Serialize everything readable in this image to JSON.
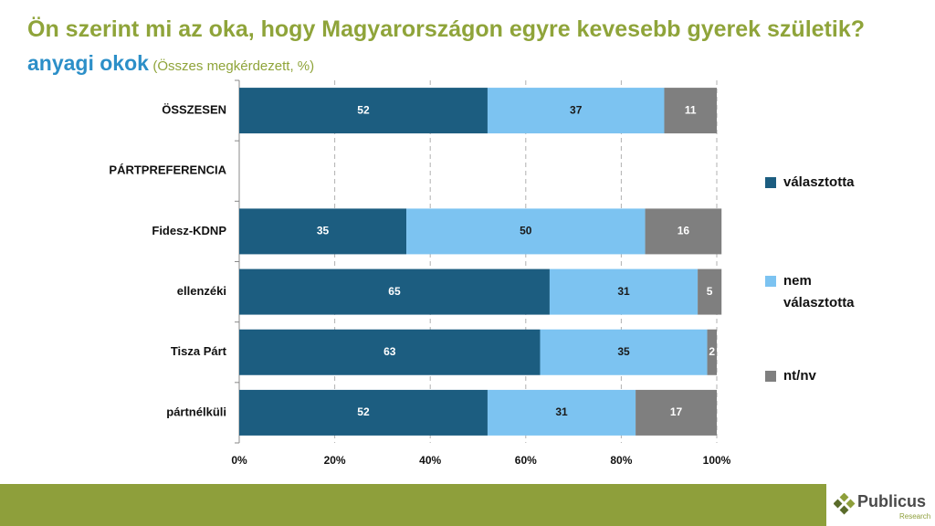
{
  "chart_data": {
    "type": "stacked-bar-horizontal",
    "title": "Ön szerint mi az oka, hogy Magyarországon egyre kevesebb gyerek születik?",
    "subtitle": "anyagi okok",
    "note": "(Összes megkérdezett, %)",
    "categories": [
      "ÖSSZESEN",
      "PÁRTPREFERENCIA",
      "Fidesz-KDNP",
      "ellenzéki",
      "Tisza Párt",
      "pártnélküli"
    ],
    "series": [
      {
        "name": "választotta",
        "color": "#1c5d80",
        "label_color": "#ffffff",
        "values": [
          52,
          null,
          35,
          65,
          63,
          52
        ]
      },
      {
        "name": "nem választotta",
        "color": "#7cc3f1",
        "label_color": "#1a1a1a",
        "values": [
          37,
          null,
          50,
          31,
          35,
          31
        ]
      },
      {
        "name": "nt/nv",
        "color": "#7f7f7f",
        "label_color": "#ffffff",
        "values": [
          11,
          null,
          16,
          5,
          2,
          17
        ]
      }
    ],
    "xlim": [
      0,
      100
    ],
    "xticks": [
      {
        "value": 0,
        "label": "0%"
      },
      {
        "value": 20,
        "label": "20%"
      },
      {
        "value": 40,
        "label": "40%"
      },
      {
        "value": 60,
        "label": "60%"
      },
      {
        "value": 80,
        "label": "80%"
      },
      {
        "value": 100,
        "label": "100%"
      }
    ],
    "grid": true
  },
  "logo": {
    "name": "Publicus",
    "sub": "Research"
  }
}
